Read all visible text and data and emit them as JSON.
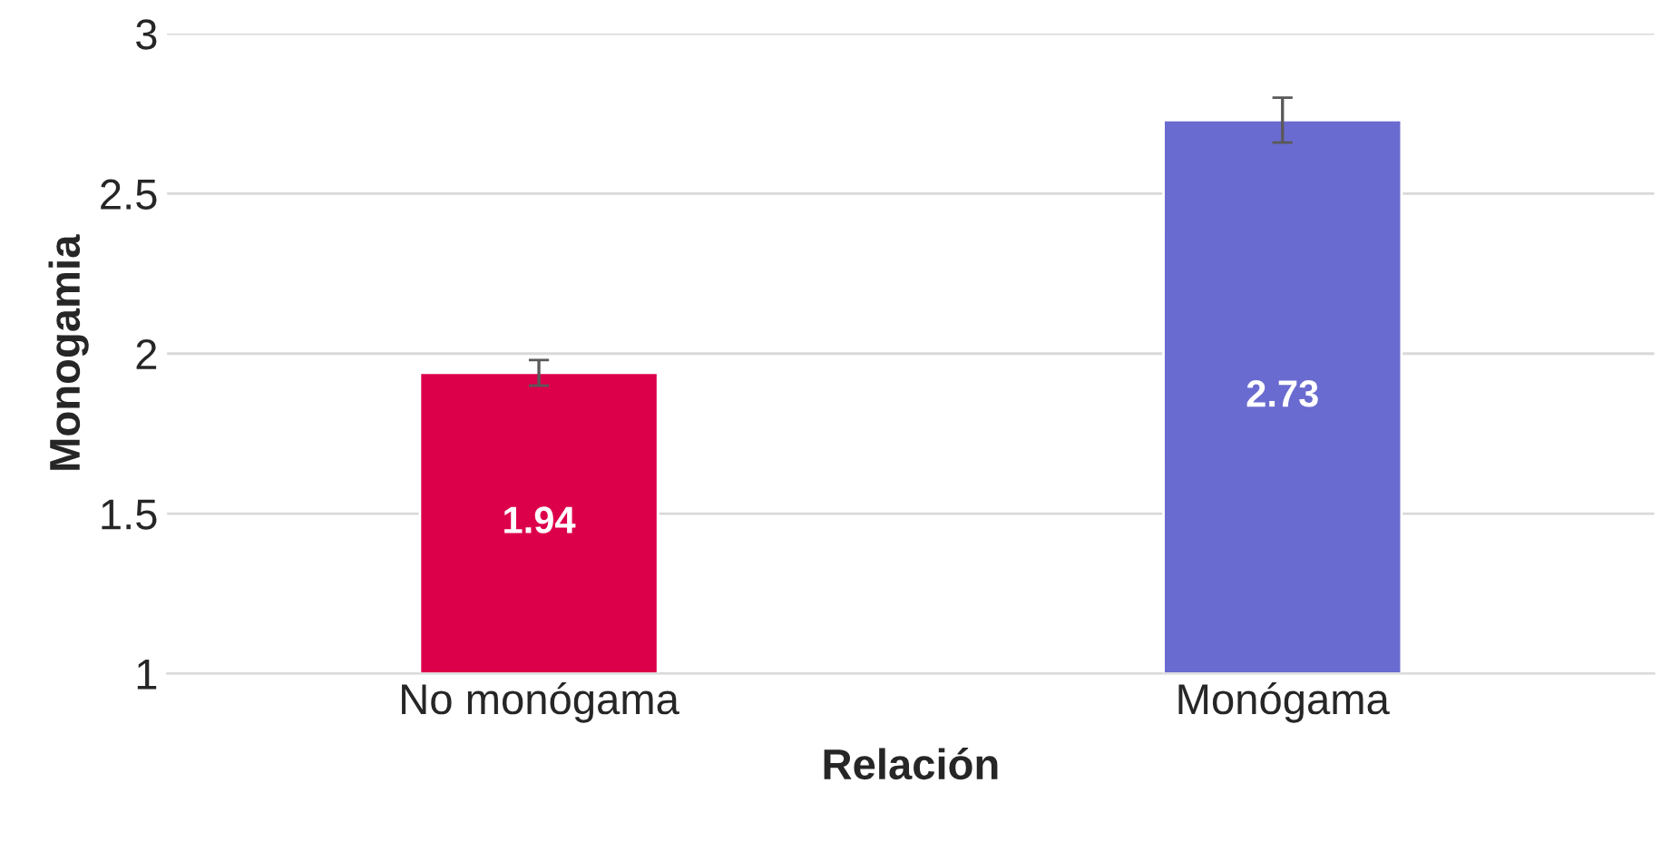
{
  "chart_data": {
    "type": "bar",
    "xlabel": "Relación",
    "ylabel": "Monogamia",
    "categories": [
      "No monógama",
      "Monógama"
    ],
    "values": [
      1.94,
      2.73
    ],
    "colors": [
      "#dc004b",
      "#6a6bd0"
    ],
    "errors": [
      0.04,
      0.07
    ],
    "ylim": [
      1,
      3
    ],
    "yticks": [
      1,
      1.5,
      2,
      2.5,
      3
    ],
    "grid": "y",
    "data_labels": true
  }
}
